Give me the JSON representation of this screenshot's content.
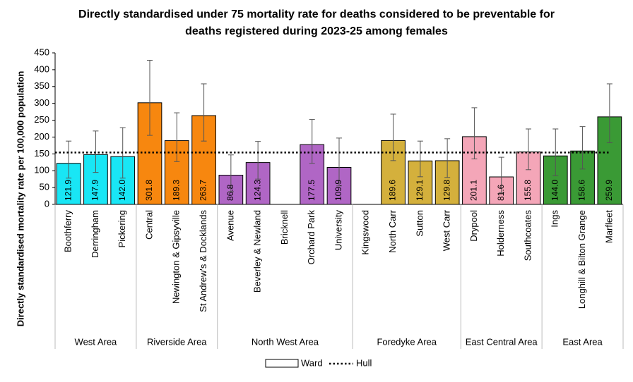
{
  "chart_data": {
    "type": "bar",
    "title_lines": [
      "Directly standardised under 75 mortality rate for deaths considered to be preventable for",
      "deaths registered during 2023-25 among females"
    ],
    "y_label": "Directly standardised mortality rate per 100,000 population",
    "ylim": [
      0,
      450
    ],
    "yticks": [
      0,
      50,
      100,
      150,
      200,
      250,
      300,
      350,
      400,
      450
    ],
    "groups": [
      {
        "name": "West Area",
        "color": "#19e6f5",
        "categories": [
          "Boothferry",
          "Derringham",
          "Pickering"
        ],
        "values": [
          121.9,
          147.9,
          142.0
        ],
        "value_labels": [
          "121.9",
          "147.9",
          "142.0"
        ],
        "ci_low": [
          78,
          95,
          78
        ],
        "ci_high": [
          188,
          218,
          228
        ]
      },
      {
        "name": "Riverside Area",
        "color": "#f7870f",
        "categories": [
          "Central",
          "Newington & Gipsyville",
          "St Andrew's & Docklands"
        ],
        "values": [
          301.8,
          189.3,
          263.7
        ],
        "value_labels": [
          "301.8",
          "189.3",
          "263.7"
        ],
        "ci_low": [
          205,
          127,
          188
        ],
        "ci_high": [
          428,
          272,
          358
        ]
      },
      {
        "name": "North West Area",
        "color": "#b066c5",
        "categories": [
          "Avenue",
          "Beverley & Newland",
          "Bricknell",
          "Orchard Park",
          "University"
        ],
        "values": [
          86.8,
          124.3,
          null,
          177.5,
          109.9
        ],
        "value_labels": [
          "86.8",
          "124.3",
          null,
          "177.5",
          "109.9"
        ],
        "ci_low": [
          38,
          75,
          null,
          122,
          55
        ],
        "ci_high": [
          147,
          187,
          null,
          252,
          197
        ]
      },
      {
        "name": "Foredyke Area",
        "color": "#d4b03c",
        "categories": [
          "Kingswood",
          "North Carr",
          "Sutton",
          "West Carr"
        ],
        "values": [
          null,
          189.6,
          129.1,
          129.8
        ],
        "value_labels": [
          null,
          "189.6",
          "129.1",
          "129.8"
        ],
        "ci_low": [
          null,
          130,
          82,
          80
        ],
        "ci_high": [
          null,
          268,
          188,
          195
        ]
      },
      {
        "name": "East Central Area",
        "color": "#f4a6b8",
        "categories": [
          "Drypool",
          "Holderness",
          "Southcoates"
        ],
        "values": [
          201.1,
          81.6,
          155.8
        ],
        "value_labels": [
          "201.1",
          "81.6",
          "155.8"
        ],
        "ci_low": [
          135,
          35,
          103
        ],
        "ci_high": [
          287,
          140,
          224
        ]
      },
      {
        "name": "East Area",
        "color": "#3a9a35",
        "categories": [
          "Ings",
          "Longhill & Bilton Grange",
          "Marfleet"
        ],
        "values": [
          144.0,
          158.6,
          259.9
        ],
        "value_labels": [
          "144.0",
          "158.6",
          "259.9"
        ],
        "ci_low": [
          85,
          105,
          183
        ],
        "ci_high": [
          224,
          231,
          358
        ]
      }
    ],
    "legend": {
      "bar": "Ward"
    },
    "reference": {
      "name": "Hull",
      "value": 154
    }
  }
}
